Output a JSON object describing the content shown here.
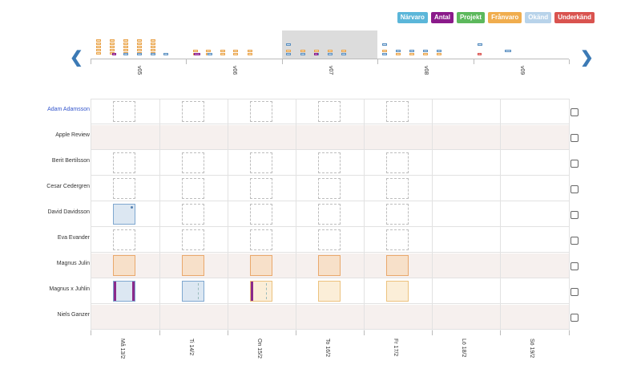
{
  "legend": [
    {
      "label": "Närvaro",
      "color": "#5bb6d9"
    },
    {
      "label": "Antal",
      "color": "#8a1a8a"
    },
    {
      "label": "Projekt",
      "color": "#5cb85c"
    },
    {
      "label": "Frånvaro",
      "color": "#f0ad4e"
    },
    {
      "label": "Okänd",
      "color": "#b8d3ea"
    },
    {
      "label": "Underkänd",
      "color": "#d9534f"
    }
  ],
  "weeks": [
    "v05",
    "v06",
    "v07",
    "v08",
    "v09"
  ],
  "selected_week": "v07",
  "people": [
    {
      "name": "Adam Adamsson",
      "link": true
    },
    {
      "name": "Apple Review",
      "link": false
    },
    {
      "name": "Berit Bertilsson",
      "link": false
    },
    {
      "name": "Cesar Cedergren",
      "link": false
    },
    {
      "name": "David Davidsson",
      "link": false
    },
    {
      "name": "Eva Evander",
      "link": false
    },
    {
      "name": "Magnus Julin",
      "link": false
    },
    {
      "name": "Magnus x Juhlin",
      "link": false
    },
    {
      "name": "Niels Ganzer",
      "link": false
    }
  ],
  "days": [
    "Må 13/2",
    "Ti 14/2",
    "On 15/2",
    "To 16/2",
    "Fr 17/2",
    "Lö 18/2",
    "Sö 19/2"
  ],
  "nav": {
    "prev": "❮",
    "next": "❯"
  }
}
